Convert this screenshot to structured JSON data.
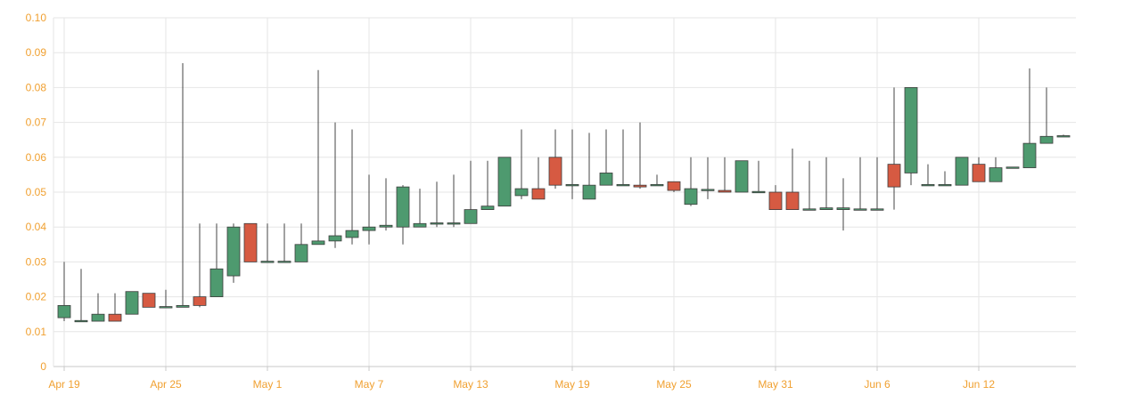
{
  "chart_data": {
    "type": "candlestick",
    "ylim": [
      0,
      0.1
    ],
    "y_ticks": [
      "0",
      "0.01",
      "0.02",
      "0.03",
      "0.04",
      "0.05",
      "0.06",
      "0.07",
      "0.08",
      "0.09",
      "0.10"
    ],
    "x_tick_labels": [
      "Apr 19",
      "Apr 25",
      "May 1",
      "May 7",
      "May 13",
      "May 19",
      "May 25",
      "May 31",
      "Jun 6",
      "Jun 12"
    ],
    "grid": true,
    "colors": {
      "up": "#4e9a6f",
      "down": "#d65a42",
      "wick": "#444444",
      "tick_text": "#f0a030",
      "grid": "#e6e6e6"
    },
    "candles": [
      {
        "date": "Apr 19",
        "open": 0.014,
        "high": 0.03,
        "low": 0.013,
        "close": 0.0175
      },
      {
        "date": "Apr 20",
        "open": 0.013,
        "high": 0.028,
        "low": 0.013,
        "close": 0.0132
      },
      {
        "date": "Apr 21",
        "open": 0.013,
        "high": 0.021,
        "low": 0.013,
        "close": 0.015
      },
      {
        "date": "Apr 22",
        "open": 0.015,
        "high": 0.021,
        "low": 0.013,
        "close": 0.013
      },
      {
        "date": "Apr 23",
        "open": 0.015,
        "high": 0.021,
        "low": 0.015,
        "close": 0.0215
      },
      {
        "date": "Apr 24",
        "open": 0.021,
        "high": 0.021,
        "low": 0.017,
        "close": 0.017
      },
      {
        "date": "Apr 25",
        "open": 0.017,
        "high": 0.022,
        "low": 0.017,
        "close": 0.0172
      },
      {
        "date": "Apr 26",
        "open": 0.017,
        "high": 0.087,
        "low": 0.017,
        "close": 0.0175
      },
      {
        "date": "Apr 27",
        "open": 0.02,
        "high": 0.041,
        "low": 0.017,
        "close": 0.0175
      },
      {
        "date": "Apr 28",
        "open": 0.02,
        "high": 0.041,
        "low": 0.02,
        "close": 0.028
      },
      {
        "date": "Apr 29",
        "open": 0.026,
        "high": 0.041,
        "low": 0.024,
        "close": 0.04
      },
      {
        "date": "Apr 30",
        "open": 0.041,
        "high": 0.041,
        "low": 0.03,
        "close": 0.03
      },
      {
        "date": "May 1",
        "open": 0.03,
        "high": 0.041,
        "low": 0.03,
        "close": 0.0302
      },
      {
        "date": "May 2",
        "open": 0.03,
        "high": 0.041,
        "low": 0.03,
        "close": 0.0302
      },
      {
        "date": "May 3",
        "open": 0.03,
        "high": 0.041,
        "low": 0.03,
        "close": 0.035
      },
      {
        "date": "May 4",
        "open": 0.035,
        "high": 0.085,
        "low": 0.035,
        "close": 0.036
      },
      {
        "date": "May 5",
        "open": 0.036,
        "high": 0.07,
        "low": 0.034,
        "close": 0.0375
      },
      {
        "date": "May 6",
        "open": 0.037,
        "high": 0.068,
        "low": 0.035,
        "close": 0.039
      },
      {
        "date": "May 7",
        "open": 0.039,
        "high": 0.055,
        "low": 0.035,
        "close": 0.04
      },
      {
        "date": "May 8",
        "open": 0.04,
        "high": 0.054,
        "low": 0.039,
        "close": 0.0405
      },
      {
        "date": "May 9",
        "open": 0.04,
        "high": 0.052,
        "low": 0.035,
        "close": 0.0515
      },
      {
        "date": "May 10",
        "open": 0.04,
        "high": 0.051,
        "low": 0.04,
        "close": 0.041
      },
      {
        "date": "May 11",
        "open": 0.041,
        "high": 0.053,
        "low": 0.04,
        "close": 0.0412
      },
      {
        "date": "May 12",
        "open": 0.041,
        "high": 0.055,
        "low": 0.04,
        "close": 0.0412
      },
      {
        "date": "May 13",
        "open": 0.041,
        "high": 0.059,
        "low": 0.041,
        "close": 0.045
      },
      {
        "date": "May 14",
        "open": 0.045,
        "high": 0.059,
        "low": 0.045,
        "close": 0.046
      },
      {
        "date": "May 15",
        "open": 0.046,
        "high": 0.06,
        "low": 0.046,
        "close": 0.06
      },
      {
        "date": "May 16",
        "open": 0.049,
        "high": 0.068,
        "low": 0.048,
        "close": 0.051
      },
      {
        "date": "May 17",
        "open": 0.051,
        "high": 0.06,
        "low": 0.048,
        "close": 0.048
      },
      {
        "date": "May 18",
        "open": 0.06,
        "high": 0.068,
        "low": 0.051,
        "close": 0.052
      },
      {
        "date": "May 19",
        "open": 0.052,
        "high": 0.068,
        "low": 0.048,
        "close": 0.0522
      },
      {
        "date": "May 20",
        "open": 0.048,
        "high": 0.067,
        "low": 0.048,
        "close": 0.052
      },
      {
        "date": "May 21",
        "open": 0.052,
        "high": 0.068,
        "low": 0.052,
        "close": 0.0555
      },
      {
        "date": "May 22",
        "open": 0.052,
        "high": 0.068,
        "low": 0.052,
        "close": 0.0522
      },
      {
        "date": "May 23",
        "open": 0.052,
        "high": 0.07,
        "low": 0.051,
        "close": 0.0515
      },
      {
        "date": "May 24",
        "open": 0.052,
        "high": 0.055,
        "low": 0.052,
        "close": 0.0522
      },
      {
        "date": "May 25",
        "open": 0.053,
        "high": 0.053,
        "low": 0.05,
        "close": 0.0505
      },
      {
        "date": "May 26",
        "open": 0.0465,
        "high": 0.06,
        "low": 0.046,
        "close": 0.051
      },
      {
        "date": "May 27",
        "open": 0.0505,
        "high": 0.06,
        "low": 0.048,
        "close": 0.0508
      },
      {
        "date": "May 28",
        "open": 0.0505,
        "high": 0.06,
        "low": 0.05,
        "close": 0.05
      },
      {
        "date": "May 29",
        "open": 0.05,
        "high": 0.059,
        "low": 0.05,
        "close": 0.059
      },
      {
        "date": "May 30",
        "open": 0.05,
        "high": 0.059,
        "low": 0.05,
        "close": 0.0502
      },
      {
        "date": "May 31",
        "open": 0.05,
        "high": 0.052,
        "low": 0.045,
        "close": 0.045
      },
      {
        "date": "Jun 1",
        "open": 0.05,
        "high": 0.0625,
        "low": 0.045,
        "close": 0.045
      },
      {
        "date": "Jun 2",
        "open": 0.045,
        "high": 0.059,
        "low": 0.045,
        "close": 0.0452
      },
      {
        "date": "Jun 3",
        "open": 0.045,
        "high": 0.06,
        "low": 0.045,
        "close": 0.0455
      },
      {
        "date": "Jun 4",
        "open": 0.045,
        "high": 0.054,
        "low": 0.039,
        "close": 0.0455
      },
      {
        "date": "Jun 5",
        "open": 0.045,
        "high": 0.06,
        "low": 0.045,
        "close": 0.0452
      },
      {
        "date": "Jun 6",
        "open": 0.045,
        "high": 0.06,
        "low": 0.045,
        "close": 0.0452
      },
      {
        "date": "Jun 7",
        "open": 0.058,
        "high": 0.08,
        "low": 0.045,
        "close": 0.0515
      },
      {
        "date": "Jun 8",
        "open": 0.0555,
        "high": 0.08,
        "low": 0.052,
        "close": 0.08
      },
      {
        "date": "Jun 9",
        "open": 0.052,
        "high": 0.058,
        "low": 0.052,
        "close": 0.0522
      },
      {
        "date": "Jun 10",
        "open": 0.052,
        "high": 0.056,
        "low": 0.052,
        "close": 0.0522
      },
      {
        "date": "Jun 11",
        "open": 0.052,
        "high": 0.06,
        "low": 0.052,
        "close": 0.06
      },
      {
        "date": "Jun 12",
        "open": 0.058,
        "high": 0.06,
        "low": 0.053,
        "close": 0.053
      },
      {
        "date": "Jun 13",
        "open": 0.053,
        "high": 0.06,
        "low": 0.053,
        "close": 0.057
      },
      {
        "date": "Jun 14",
        "open": 0.057,
        "high": 0.057,
        "low": 0.057,
        "close": 0.0572
      },
      {
        "date": "Jun 15",
        "open": 0.057,
        "high": 0.0855,
        "low": 0.057,
        "close": 0.064
      },
      {
        "date": "Jun 16",
        "open": 0.064,
        "high": 0.08,
        "low": 0.064,
        "close": 0.066
      },
      {
        "date": "Jun 17",
        "open": 0.066,
        "high": 0.0665,
        "low": 0.066,
        "close": 0.0662
      }
    ]
  }
}
